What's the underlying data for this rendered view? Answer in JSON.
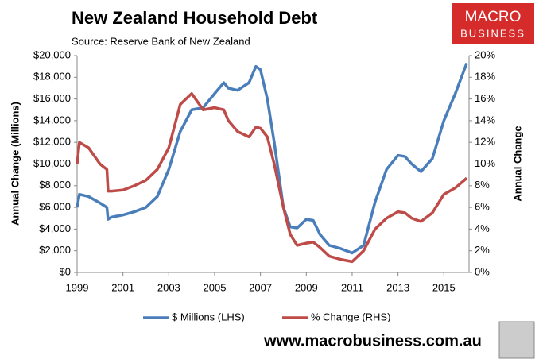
{
  "chart_data": {
    "type": "line",
    "title": "New Zealand Household Debt",
    "subtitle": "Source: Reserve Bank of New Zealand",
    "ylabel": "Annual Change (Millions)",
    "y2label": "Annual Change",
    "logo_text": [
      "MACRO",
      "BUSINESS"
    ],
    "watermark": "www.macrobusiness.com.au",
    "x": [
      1999.0,
      1999.1,
      1999.5,
      2000.0,
      2000.3,
      2000.35,
      2000.5,
      2001.0,
      2001.5,
      2002.0,
      2002.5,
      2003.0,
      2003.5,
      2004.0,
      2004.5,
      2005.0,
      2005.4,
      2005.6,
      2006.0,
      2006.5,
      2006.8,
      2007.0,
      2007.3,
      2007.6,
      2008.0,
      2008.3,
      2008.6,
      2009.0,
      2009.3,
      2009.6,
      2010.0,
      2010.5,
      2011.0,
      2011.5,
      2012.0,
      2012.5,
      2013.0,
      2013.3,
      2013.6,
      2014.0,
      2014.5,
      2015.0,
      2015.5,
      2016.0
    ],
    "series": [
      {
        "name": "$ Millions (LHS)",
        "color": "#4a7ebb",
        "axis": "y",
        "values": [
          6000,
          7200,
          7000,
          6400,
          6000,
          4900,
          5100,
          5300,
          5600,
          6000,
          7000,
          9500,
          13000,
          15000,
          15200,
          16500,
          17500,
          17000,
          16800,
          17500,
          19000,
          18700,
          16000,
          12000,
          6000,
          4200,
          4100,
          4900,
          4800,
          3500,
          2500,
          2200,
          1800,
          2500,
          6500,
          9500,
          10800,
          10700,
          10000,
          9300,
          10500,
          14000,
          16500,
          19300
        ]
      },
      {
        "name": "% Change (RHS)",
        "color": "#be4b48",
        "axis": "y2",
        "values": [
          10,
          12,
          11.5,
          10,
          9.5,
          7.5,
          7.5,
          7.6,
          8,
          8.5,
          9.5,
          11.5,
          15.5,
          16.5,
          15,
          15.2,
          15,
          14,
          13,
          12.5,
          13.4,
          13.3,
          12.5,
          10,
          6,
          3.5,
          2.5,
          2.7,
          2.8,
          2.3,
          1.5,
          1.2,
          1.0,
          2,
          4,
          5,
          5.6,
          5.5,
          5,
          4.7,
          5.5,
          7.2,
          7.8,
          8.7
        ]
      }
    ],
    "xlim": [
      1999,
      2016.1
    ],
    "xticks": [
      1999,
      2001,
      2003,
      2005,
      2007,
      2009,
      2011,
      2013,
      2015
    ],
    "ylim": [
      0,
      20000
    ],
    "yticks": [
      {
        "value": 0,
        "label": "$0"
      },
      {
        "value": 2000,
        "label": "$2,000"
      },
      {
        "value": 4000,
        "label": "$4,000"
      },
      {
        "value": 6000,
        "label": "$6,000"
      },
      {
        "value": 8000,
        "label": "$8,000"
      },
      {
        "value": 10000,
        "label": "$10,000"
      },
      {
        "value": 12000,
        "label": "$12,000"
      },
      {
        "value": 14000,
        "label": "$14,000"
      },
      {
        "value": 16000,
        "label": "$16,000"
      },
      {
        "value": 18000,
        "label": "$18,000"
      },
      {
        "value": 20000,
        "label": "$20,000"
      }
    ],
    "y2lim": [
      0,
      20
    ],
    "y2ticks": [
      {
        "value": 0,
        "label": "0%"
      },
      {
        "value": 2,
        "label": "2%"
      },
      {
        "value": 4,
        "label": "4%"
      },
      {
        "value": 6,
        "label": "6%"
      },
      {
        "value": 8,
        "label": "8%"
      },
      {
        "value": 10,
        "label": "10%"
      },
      {
        "value": 12,
        "label": "12%"
      },
      {
        "value": 14,
        "label": "14%"
      },
      {
        "value": 16,
        "label": "16%"
      },
      {
        "value": 18,
        "label": "18%"
      },
      {
        "value": 20,
        "label": "20%"
      }
    ],
    "legend": "bottom"
  }
}
